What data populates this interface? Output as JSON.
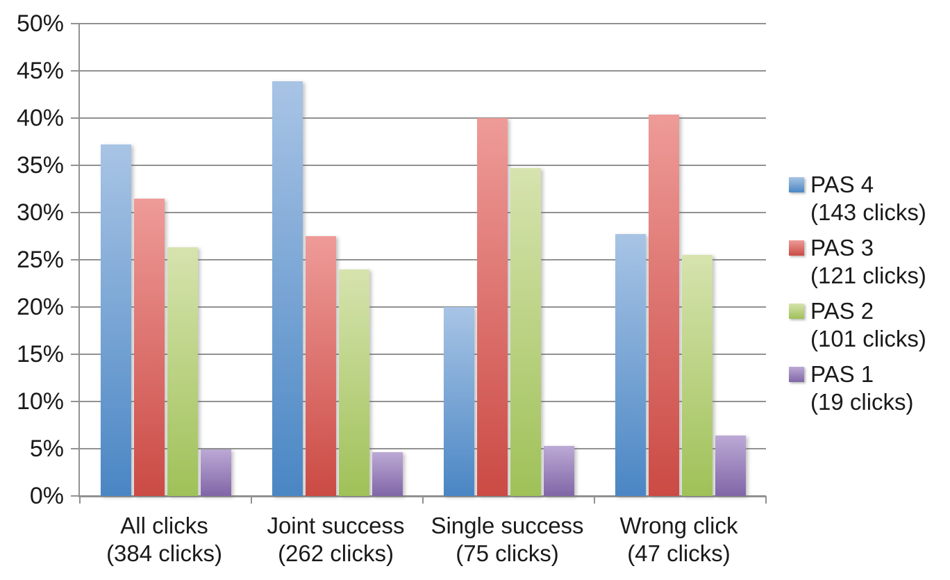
{
  "chart_data": {
    "type": "bar",
    "title": "",
    "xlabel": "",
    "ylabel": "",
    "ylim": [
      0,
      50
    ],
    "y_ticks": [
      "0%",
      "5%",
      "10%",
      "15%",
      "20%",
      "25%",
      "30%",
      "35%",
      "40%",
      "45%",
      "50%"
    ],
    "grid": true,
    "legend_position": "right",
    "categories": [
      {
        "label": "All clicks",
        "sublabel": "(384 clicks)"
      },
      {
        "label": "Joint success",
        "sublabel": "(262 clicks)"
      },
      {
        "label": "Single success",
        "sublabel": "(75 clicks)"
      },
      {
        "label": "Wrong click",
        "sublabel": "(47 clicks)"
      }
    ],
    "series": [
      {
        "name": "PAS 4",
        "sublabel": "(143 clicks)",
        "values": [
          37.2,
          43.9,
          20.0,
          27.7
        ],
        "color_top": "#a8c4e5",
        "color_bottom": "#4a86c4"
      },
      {
        "name": "PAS 3",
        "sublabel": "(121 clicks)",
        "values": [
          31.5,
          27.5,
          40.0,
          40.4
        ],
        "color_top": "#ee9b98",
        "color_bottom": "#cb4a44"
      },
      {
        "name": "PAS 2",
        "sublabel": "(101 clicks)",
        "values": [
          26.3,
          24.0,
          34.7,
          25.5
        ],
        "color_top": "#d6e3ae",
        "color_bottom": "#9fc158"
      },
      {
        "name": "PAS 1",
        "sublabel": "(19 clicks)",
        "values": [
          4.9,
          4.6,
          5.3,
          6.4
        ],
        "color_top": "#bca9d5",
        "color_bottom": "#8066a7"
      }
    ]
  },
  "style": {
    "axis_color": "#919191",
    "text_color": "#1a1a1a",
    "background": "#ffffff"
  }
}
